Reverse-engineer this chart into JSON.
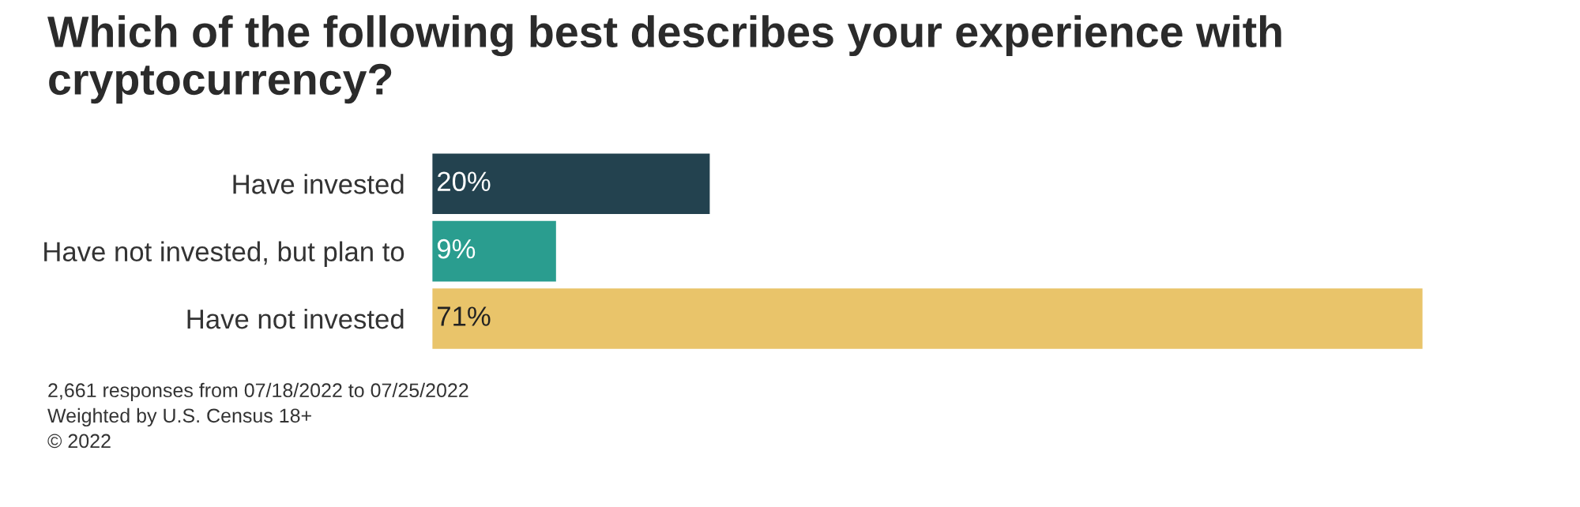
{
  "chart_data": {
    "type": "bar",
    "orientation": "horizontal",
    "title": "Which of the following best describes your experience with cryptocurrency?",
    "categories": [
      "Have invested",
      "Have not invested, but plan to",
      "Have not invested"
    ],
    "values": [
      20,
      9,
      71
    ],
    "colors": [
      "#23424f",
      "#2a9d8f",
      "#e9c46a"
    ],
    "value_labels": [
      "20%",
      "9%",
      "71%"
    ],
    "grid": false,
    "legend": false,
    "annotations": [
      "2,661 responses from 07/18/2022 to 07/25/2022",
      "Weighted by U.S. Census 18+",
      "© 2022"
    ]
  }
}
